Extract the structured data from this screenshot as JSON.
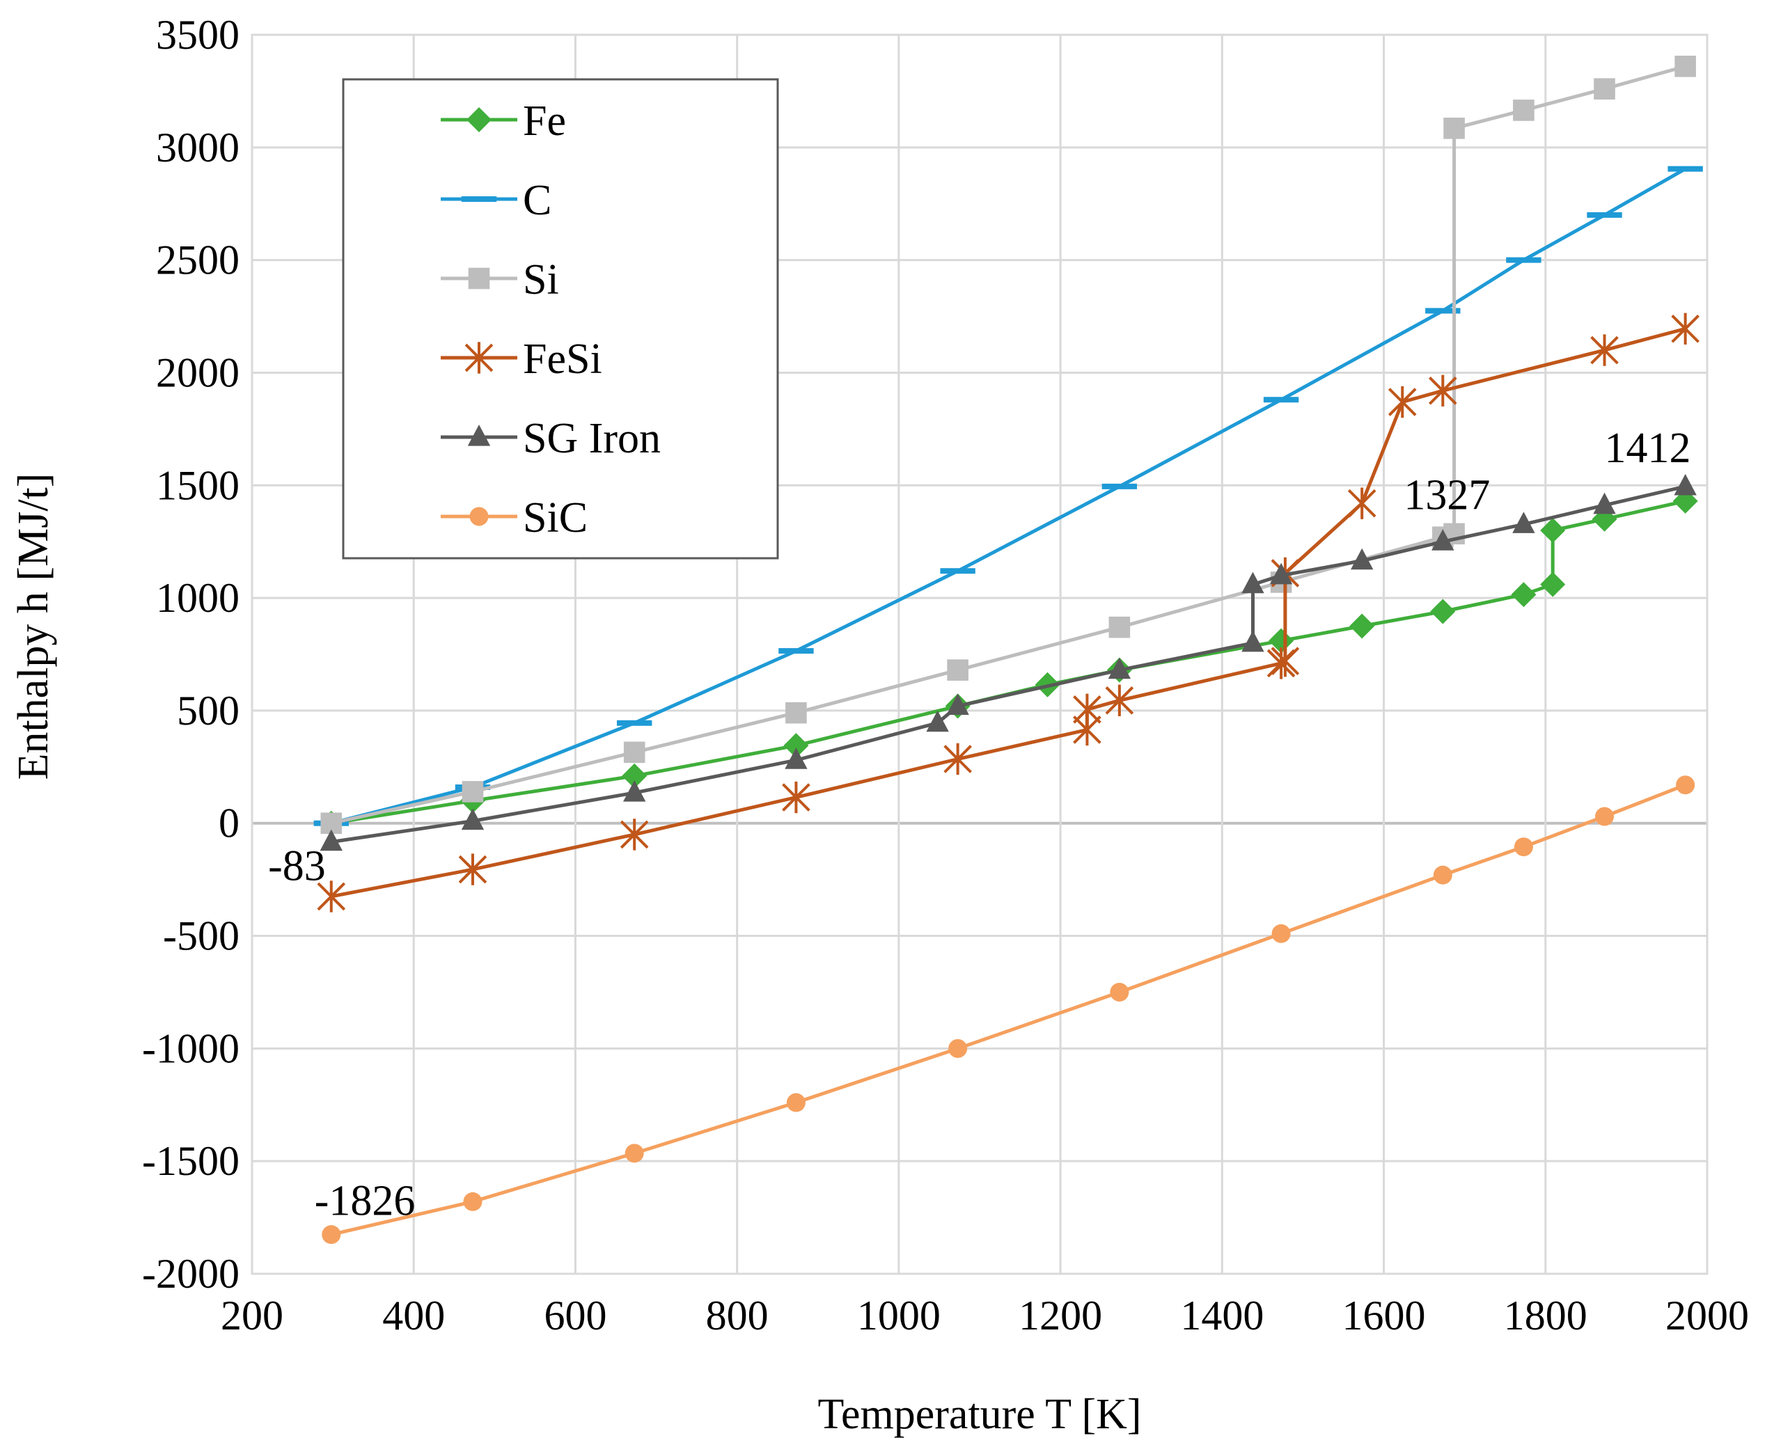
{
  "chart_data": {
    "type": "line",
    "title": "",
    "xlabel": "Temperature T [K]",
    "ylabel": "Enthalpy h [MJ/t]",
    "xlim": [
      200,
      2000
    ],
    "ylim": [
      -2000,
      3500
    ],
    "xticks": [
      200,
      400,
      600,
      800,
      1000,
      1200,
      1400,
      1600,
      1800,
      2000
    ],
    "yticks": [
      -2000,
      -1500,
      -1000,
      -500,
      0,
      500,
      1000,
      1500,
      2000,
      2500,
      3000,
      3500
    ],
    "grid": true,
    "legend_position": "top-left",
    "series": [
      {
        "name": "Fe",
        "color": "#3fae3a",
        "marker": "diamond",
        "points": [
          [
            298,
            0
          ],
          [
            473,
            100
          ],
          [
            673,
            210
          ],
          [
            873,
            345
          ],
          [
            1073,
            520
          ],
          [
            1184,
            615
          ],
          [
            1273,
            680
          ],
          [
            1473,
            810
          ],
          [
            1573,
            875
          ],
          [
            1673,
            940
          ],
          [
            1773,
            1015
          ],
          [
            1809,
            1060
          ],
          [
            1809,
            1300
          ],
          [
            1873,
            1350
          ],
          [
            1973,
            1430
          ]
        ]
      },
      {
        "name": "C",
        "color": "#1e9ad6",
        "marker": "dash",
        "points": [
          [
            298,
            0
          ],
          [
            473,
            160
          ],
          [
            673,
            445
          ],
          [
            873,
            765
          ],
          [
            1073,
            1120
          ],
          [
            1273,
            1495
          ],
          [
            1473,
            1880
          ],
          [
            1673,
            2275
          ],
          [
            1773,
            2500
          ],
          [
            1873,
            2700
          ],
          [
            1973,
            2905
          ]
        ]
      },
      {
        "name": "Si",
        "color": "#bdbdbd",
        "marker": "square",
        "points": [
          [
            298,
            0
          ],
          [
            473,
            140
          ],
          [
            673,
            315
          ],
          [
            873,
            490
          ],
          [
            1073,
            680
          ],
          [
            1273,
            870
          ],
          [
            1473,
            1070
          ],
          [
            1673,
            1270
          ],
          [
            1687,
            1285
          ],
          [
            1687,
            3085
          ],
          [
            1773,
            3165
          ],
          [
            1873,
            3260
          ],
          [
            1973,
            3360
          ]
        ]
      },
      {
        "name": "FeSi",
        "color": "#c0561a",
        "marker": "asterisk",
        "points": [
          [
            298,
            -325
          ],
          [
            473,
            -205
          ],
          [
            673,
            -50
          ],
          [
            873,
            115
          ],
          [
            1073,
            285
          ],
          [
            1233,
            415
          ],
          [
            1233,
            505
          ],
          [
            1273,
            545
          ],
          [
            1473,
            710
          ],
          [
            1478,
            720
          ],
          [
            1478,
            1110
          ],
          [
            1573,
            1420
          ],
          [
            1623,
            1870
          ],
          [
            1673,
            1920
          ],
          [
            1873,
            2100
          ],
          [
            1973,
            2195
          ]
        ]
      },
      {
        "name": "SG Iron",
        "color": "#595959",
        "marker": "triangle",
        "points": [
          [
            298,
            -83
          ],
          [
            473,
            10
          ],
          [
            673,
            135
          ],
          [
            873,
            280
          ],
          [
            1048,
            445
          ],
          [
            1073,
            520
          ],
          [
            1273,
            680
          ],
          [
            1438,
            800
          ],
          [
            1438,
            1060
          ],
          [
            1473,
            1100
          ],
          [
            1573,
            1165
          ],
          [
            1673,
            1250
          ],
          [
            1773,
            1327
          ],
          [
            1873,
            1412
          ],
          [
            1973,
            1495
          ]
        ]
      },
      {
        "name": "SiC",
        "color": "#f5a05e",
        "marker": "circle",
        "points": [
          [
            298,
            -1826
          ],
          [
            473,
            -1680
          ],
          [
            673,
            -1465
          ],
          [
            873,
            -1240
          ],
          [
            1073,
            -1000
          ],
          [
            1273,
            -750
          ],
          [
            1473,
            -490
          ],
          [
            1673,
            -230
          ],
          [
            1773,
            -105
          ],
          [
            1873,
            30
          ],
          [
            1973,
            170
          ]
        ]
      }
    ],
    "annotations": [
      {
        "text": "-83",
        "x": 298,
        "y": -83
      },
      {
        "text": "-1826",
        "x": 298,
        "y": -1826
      },
      {
        "text": "1327",
        "x": 1773,
        "y": 1327
      },
      {
        "text": "1412",
        "x": 1873,
        "y": 1412
      }
    ]
  }
}
